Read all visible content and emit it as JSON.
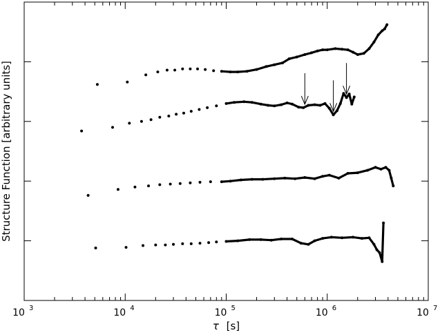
{
  "chart_data": {
    "type": "scatter",
    "title": "",
    "xlabel_symbol": "τ",
    "xlabel_unit": "[s]",
    "ylabel": "Structure Function [arbitrary units]",
    "x_scale": "log",
    "xlim": [
      1000,
      10000000
    ],
    "x_tick_labels": [
      {
        "base": "10",
        "exp": "3",
        "value": 1000
      },
      {
        "base": "10",
        "exp": "4",
        "value": 10000
      },
      {
        "base": "10",
        "exp": "5",
        "value": 100000
      },
      {
        "base": "10",
        "exp": "6",
        "value": 1000000
      },
      {
        "base": "10",
        "exp": "7",
        "value": 10000000
      }
    ],
    "y_scale": "log",
    "y_tick_labels_shown": false,
    "ylim_decades": [
      0,
      5
    ],
    "grid": false,
    "legend": "none",
    "series": [
      {
        "offset_decades": 4,
        "points": [
          [
            5300,
            -0.38
          ],
          [
            10500,
            -0.34
          ],
          [
            16000,
            -0.22
          ],
          [
            21000,
            -0.17
          ],
          [
            26000,
            -0.14
          ],
          [
            31000,
            -0.14
          ],
          [
            37000,
            -0.12
          ],
          [
            44000,
            -0.12
          ],
          [
            52000,
            -0.12
          ],
          [
            62000,
            -0.13
          ],
          [
            75000,
            -0.15
          ],
          [
            90000,
            -0.16
          ],
          [
            110000,
            -0.17
          ],
          [
            130000,
            -0.17
          ],
          [
            160000,
            -0.16
          ],
          [
            200000,
            -0.13
          ],
          [
            250000,
            -0.08
          ],
          [
            300000,
            -0.05
          ],
          [
            360000,
            -0.02
          ],
          [
            420000,
            0.05
          ],
          [
            500000,
            0.08
          ],
          [
            600000,
            0.12
          ],
          [
            700000,
            0.15
          ],
          [
            800000,
            0.18
          ],
          [
            900000,
            0.2
          ],
          [
            1000000,
            0.2
          ],
          [
            1200000,
            0.22
          ],
          [
            1400000,
            0.21
          ],
          [
            1600000,
            0.2
          ],
          [
            1800000,
            0.16
          ],
          [
            2000000,
            0.12
          ],
          [
            2300000,
            0.14
          ],
          [
            2600000,
            0.22
          ],
          [
            2900000,
            0.33
          ],
          [
            3200000,
            0.45
          ],
          [
            3500000,
            0.52
          ],
          [
            3700000,
            0.55
          ],
          [
            3900000,
            0.62
          ]
        ]
      },
      {
        "offset_decades": 3,
        "points": [
          [
            3700,
            -0.16
          ],
          [
            7500,
            -0.1
          ],
          [
            11000,
            -0.03
          ],
          [
            14500,
            0.0
          ],
          [
            18000,
            0.03
          ],
          [
            22000,
            0.07
          ],
          [
            27000,
            0.09
          ],
          [
            32000,
            0.12
          ],
          [
            38000,
            0.14
          ],
          [
            45000,
            0.17
          ],
          [
            54000,
            0.2
          ],
          [
            65000,
            0.23
          ],
          [
            80000,
            0.26
          ],
          [
            100000,
            0.3
          ],
          [
            120000,
            0.32
          ],
          [
            150000,
            0.33
          ],
          [
            180000,
            0.32
          ],
          [
            220000,
            0.29
          ],
          [
            260000,
            0.27
          ],
          [
            300000,
            0.26
          ],
          [
            350000,
            0.28
          ],
          [
            400000,
            0.31
          ],
          [
            450000,
            0.29
          ],
          [
            520000,
            0.24
          ],
          [
            580000,
            0.23
          ],
          [
            650000,
            0.27
          ],
          [
            750000,
            0.28
          ],
          [
            850000,
            0.27
          ],
          [
            950000,
            0.3
          ],
          [
            1050000,
            0.22
          ],
          [
            1150000,
            0.11
          ],
          [
            1250000,
            0.18
          ],
          [
            1350000,
            0.3
          ],
          [
            1450000,
            0.47
          ],
          [
            1550000,
            0.4
          ],
          [
            1650000,
            0.46
          ],
          [
            1750000,
            0.29
          ],
          [
            1850000,
            0.41
          ]
        ]
      },
      {
        "offset_decades": 2,
        "points": [
          [
            4300,
            -0.24
          ],
          [
            8500,
            -0.14
          ],
          [
            12500,
            -0.1
          ],
          [
            17000,
            -0.08
          ],
          [
            22000,
            -0.06
          ],
          [
            28000,
            -0.05
          ],
          [
            35000,
            -0.04
          ],
          [
            44000,
            -0.03
          ],
          [
            55000,
            -0.02
          ],
          [
            70000,
            -0.01
          ],
          [
            90000,
            -0.01
          ],
          [
            110000,
            0.0
          ],
          [
            140000,
            0.02
          ],
          [
            180000,
            0.03
          ],
          [
            230000,
            0.03
          ],
          [
            300000,
            0.04
          ],
          [
            380000,
            0.05
          ],
          [
            480000,
            0.04
          ],
          [
            600000,
            0.06
          ],
          [
            750000,
            0.04
          ],
          [
            900000,
            0.08
          ],
          [
            1050000,
            0.1
          ],
          [
            1300000,
            0.05
          ],
          [
            1600000,
            0.13
          ],
          [
            2000000,
            0.14
          ],
          [
            2500000,
            0.18
          ],
          [
            3000000,
            0.23
          ],
          [
            3400000,
            0.2
          ],
          [
            3800000,
            0.23
          ],
          [
            4100000,
            0.18
          ],
          [
            4300000,
            0.05
          ],
          [
            4500000,
            -0.08
          ]
        ]
      },
      {
        "offset_decades": 1,
        "points": [
          [
            5100,
            -0.12
          ],
          [
            10200,
            -0.11
          ],
          [
            15000,
            -0.08
          ],
          [
            20000,
            -0.07
          ],
          [
            25000,
            -0.07
          ],
          [
            30000,
            -0.06
          ],
          [
            37000,
            -0.05
          ],
          [
            45000,
            -0.05
          ],
          [
            55000,
            -0.04
          ],
          [
            67000,
            -0.03
          ],
          [
            80000,
            -0.02
          ],
          [
            100000,
            -0.01
          ],
          [
            130000,
            0.0
          ],
          [
            170000,
            0.02
          ],
          [
            220000,
            0.02
          ],
          [
            280000,
            0.01
          ],
          [
            350000,
            0.03
          ],
          [
            450000,
            0.03
          ],
          [
            550000,
            -0.04
          ],
          [
            650000,
            -0.06
          ],
          [
            750000,
            0.0
          ],
          [
            900000,
            0.04
          ],
          [
            1100000,
            0.06
          ],
          [
            1400000,
            0.05
          ],
          [
            1800000,
            0.06
          ],
          [
            2200000,
            0.04
          ],
          [
            2600000,
            0.05
          ],
          [
            2900000,
            -0.06
          ],
          [
            3100000,
            -0.15
          ],
          [
            3300000,
            -0.2
          ],
          [
            3500000,
            -0.35
          ],
          [
            3600000,
            0.3
          ]
        ]
      }
    ],
    "annotations": [
      {
        "type": "arrow",
        "x": 600000,
        "series_offset": 3
      },
      {
        "type": "arrow",
        "x": 1150000,
        "series_offset": 3
      },
      {
        "type": "arrow",
        "x": 1550000,
        "series_offset": 3
      }
    ]
  }
}
